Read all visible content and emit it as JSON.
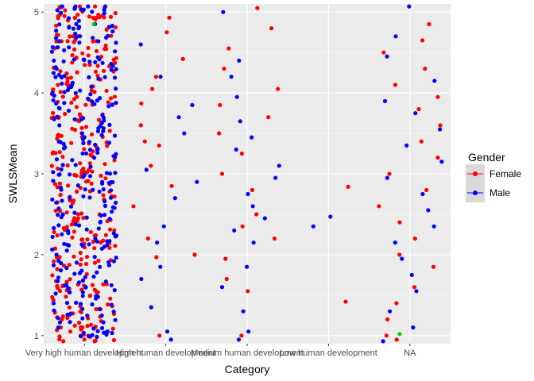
{
  "chart_data": {
    "type": "scatter",
    "xlabel": "Category",
    "ylabel": "SWLSMean",
    "categories": [
      "Very high human development",
      "High human development",
      "Medium human development",
      "Low human development",
      "NA"
    ],
    "ylim": [
      0.9,
      5.1
    ],
    "y_ticks": [
      1,
      2,
      3,
      4,
      5
    ],
    "grid": true,
    "jitter": true,
    "legend": {
      "title": "Gender",
      "position": "right"
    },
    "colors": {
      "Female": "#ff0000",
      "Male": "#0000ff",
      "Unlabeled": "#00cc00",
      "panel": "#ebebeb",
      "grid": "#ffffff"
    },
    "series": [
      {
        "name": "Female",
        "points": [
          [
            1,
            1.0
          ],
          [
            1,
            1.15
          ],
          [
            1,
            1.3
          ],
          [
            1,
            1.5
          ],
          [
            1,
            1.7
          ],
          [
            1,
            1.9
          ],
          [
            1,
            2.1
          ],
          [
            1,
            2.3
          ],
          [
            1,
            2.5
          ],
          [
            1,
            2.7
          ],
          [
            1,
            2.9
          ],
          [
            1,
            3.1
          ],
          [
            1,
            3.3
          ],
          [
            1,
            3.5
          ],
          [
            1,
            3.7
          ],
          [
            1,
            3.9
          ],
          [
            1,
            4.1
          ],
          [
            1,
            4.3
          ],
          [
            1,
            4.5
          ],
          [
            1,
            4.7
          ],
          [
            1,
            4.9
          ],
          [
            1,
            5.0
          ],
          [
            2,
            4.93
          ],
          [
            2,
            4.75
          ],
          [
            2,
            4.42
          ],
          [
            2,
            4.2
          ],
          [
            2,
            4.05
          ],
          [
            2,
            3.87
          ],
          [
            2,
            3.6
          ],
          [
            2,
            3.4
          ],
          [
            2,
            3.35
          ],
          [
            2,
            3.1
          ],
          [
            2,
            2.85
          ],
          [
            2,
            2.6
          ],
          [
            2,
            2.2
          ],
          [
            2,
            2.0
          ],
          [
            2,
            1.97
          ],
          [
            2,
            1.0
          ],
          [
            3,
            5.05
          ],
          [
            3,
            4.8
          ],
          [
            3,
            4.55
          ],
          [
            3,
            4.3
          ],
          [
            3,
            4.05
          ],
          [
            3,
            3.85
          ],
          [
            3,
            3.7
          ],
          [
            3,
            3.5
          ],
          [
            3,
            3.25
          ],
          [
            3,
            3.0
          ],
          [
            3,
            2.8
          ],
          [
            3,
            2.5
          ],
          [
            3,
            2.35
          ],
          [
            3,
            2.2
          ],
          [
            3,
            1.95
          ],
          [
            3,
            1.7
          ],
          [
            3,
            1.55
          ],
          [
            3,
            1.0
          ],
          [
            4,
            2.84
          ],
          [
            4,
            1.42
          ],
          [
            5,
            4.85
          ],
          [
            5,
            4.65
          ],
          [
            5,
            4.5
          ],
          [
            5,
            4.3
          ],
          [
            5,
            4.1
          ],
          [
            5,
            3.95
          ],
          [
            5,
            3.8
          ],
          [
            5,
            3.6
          ],
          [
            5,
            3.4
          ],
          [
            5,
            3.2
          ],
          [
            5,
            3.0
          ],
          [
            5,
            2.8
          ],
          [
            5,
            2.6
          ],
          [
            5,
            2.4
          ],
          [
            5,
            2.2
          ],
          [
            5,
            2.0
          ],
          [
            5,
            1.85
          ],
          [
            5,
            1.6
          ],
          [
            5,
            1.4
          ],
          [
            5,
            1.2
          ],
          [
            5,
            1.0
          ],
          [
            5,
            0.95
          ]
        ]
      },
      {
        "name": "Male",
        "points": [
          [
            1,
            1.05
          ],
          [
            1,
            1.25
          ],
          [
            1,
            1.45
          ],
          [
            1,
            1.65
          ],
          [
            1,
            1.85
          ],
          [
            1,
            2.05
          ],
          [
            1,
            2.25
          ],
          [
            1,
            2.45
          ],
          [
            1,
            2.65
          ],
          [
            1,
            2.85
          ],
          [
            1,
            3.05
          ],
          [
            1,
            3.25
          ],
          [
            1,
            3.45
          ],
          [
            1,
            3.65
          ],
          [
            1,
            3.85
          ],
          [
            1,
            4.05
          ],
          [
            1,
            4.25
          ],
          [
            1,
            4.45
          ],
          [
            1,
            4.65
          ],
          [
            1,
            4.85
          ],
          [
            1,
            5.05
          ],
          [
            2,
            4.6
          ],
          [
            2,
            4.2
          ],
          [
            2,
            3.85
          ],
          [
            2,
            3.7
          ],
          [
            2,
            3.5
          ],
          [
            2,
            3.05
          ],
          [
            2,
            2.9
          ],
          [
            2,
            2.7
          ],
          [
            2,
            2.35
          ],
          [
            2,
            2.15
          ],
          [
            2,
            1.85
          ],
          [
            2,
            1.7
          ],
          [
            2,
            1.35
          ],
          [
            2,
            1.05
          ],
          [
            2,
            0.95
          ],
          [
            3,
            5.0
          ],
          [
            3,
            4.4
          ],
          [
            3,
            4.2
          ],
          [
            3,
            3.95
          ],
          [
            3,
            3.65
          ],
          [
            3,
            3.45
          ],
          [
            3,
            3.3
          ],
          [
            3,
            3.1
          ],
          [
            3,
            2.95
          ],
          [
            3,
            2.75
          ],
          [
            3,
            2.6
          ],
          [
            3,
            2.45
          ],
          [
            3,
            2.3
          ],
          [
            3,
            2.15
          ],
          [
            3,
            1.85
          ],
          [
            3,
            1.6
          ],
          [
            3,
            1.3
          ],
          [
            3,
            1.05
          ],
          [
            3,
            0.95
          ],
          [
            4,
            2.47
          ],
          [
            4,
            2.35
          ],
          [
            5,
            5.08
          ],
          [
            5,
            4.7
          ],
          [
            5,
            4.45
          ],
          [
            5,
            4.15
          ],
          [
            5,
            3.9
          ],
          [
            5,
            3.75
          ],
          [
            5,
            3.55
          ],
          [
            5,
            3.35
          ],
          [
            5,
            3.15
          ],
          [
            5,
            2.95
          ],
          [
            5,
            2.75
          ],
          [
            5,
            2.55
          ],
          [
            5,
            2.35
          ],
          [
            5,
            2.15
          ],
          [
            5,
            1.95
          ],
          [
            5,
            1.75
          ],
          [
            5,
            1.55
          ],
          [
            5,
            1.3
          ],
          [
            5,
            1.1
          ],
          [
            5,
            0.93
          ]
        ]
      },
      {
        "name": "",
        "points": [
          [
            1,
            4.85
          ],
          [
            5,
            1.02
          ]
        ]
      }
    ]
  }
}
